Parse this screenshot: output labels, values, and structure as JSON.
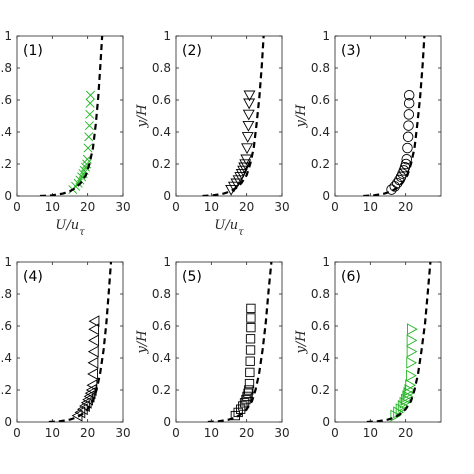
{
  "chart_data": [
    {
      "type": "scatter",
      "panel_label": "(1)",
      "xlabel": "U/u_τ",
      "ylabel": "",
      "xlim": [
        0,
        30
      ],
      "ylim": [
        0,
        1
      ],
      "xticks": [
        "0",
        "10",
        "20",
        "30"
      ],
      "yticks": [
        "0",
        "0.2",
        "0.4",
        "0.6",
        "0.8",
        "1"
      ],
      "marker": "x",
      "marker_color": "#22b422",
      "series": [
        {
          "kind": "markers",
          "x": [
            15.8,
            16.6,
            17.3,
            17.8,
            18.3,
            18.7,
            19.0,
            19.4,
            19.7,
            19.9,
            20.1,
            20.3,
            20.5,
            20.6,
            20.7,
            20.8
          ],
          "y": [
            0.04,
            0.06,
            0.08,
            0.1,
            0.12,
            0.14,
            0.16,
            0.18,
            0.2,
            0.23,
            0.3,
            0.37,
            0.44,
            0.51,
            0.58,
            0.63
          ]
        },
        {
          "kind": "dashed",
          "x": [
            6.5,
            10,
            13,
            15,
            16.5,
            18,
            19.5,
            20.5,
            21.5,
            22.3,
            23.0,
            23.6,
            24.1
          ],
          "y": [
            0.0,
            0.004,
            0.015,
            0.03,
            0.05,
            0.08,
            0.13,
            0.2,
            0.3,
            0.45,
            0.62,
            0.82,
            1.0
          ]
        }
      ]
    },
    {
      "type": "scatter",
      "panel_label": "(2)",
      "xlabel": "U/u_τ",
      "ylabel": "y/H",
      "xlim": [
        0,
        30
      ],
      "ylim": [
        0,
        1
      ],
      "xticks": [
        "0",
        "10",
        "20",
        "30"
      ],
      "yticks": [
        "0",
        "0.2",
        "0.4",
        "0.6",
        "0.8",
        "1"
      ],
      "marker": "triangle-down",
      "marker_color": "#000000",
      "series": [
        {
          "kind": "markers",
          "x": [
            15.6,
            16.4,
            17.1,
            17.7,
            18.2,
            18.6,
            19.0,
            19.3,
            19.6,
            19.9,
            20.1,
            20.3,
            20.5,
            20.6,
            20.7,
            20.8
          ],
          "y": [
            0.04,
            0.06,
            0.08,
            0.1,
            0.12,
            0.14,
            0.16,
            0.18,
            0.2,
            0.23,
            0.3,
            0.37,
            0.44,
            0.51,
            0.58,
            0.63
          ]
        },
        {
          "kind": "dashed",
          "x": [
            7.5,
            10.5,
            13.5,
            15.5,
            17,
            18.5,
            20,
            21,
            22,
            22.8,
            23.6,
            24.3,
            24.8
          ],
          "y": [
            0.0,
            0.004,
            0.015,
            0.03,
            0.05,
            0.08,
            0.13,
            0.2,
            0.3,
            0.45,
            0.62,
            0.82,
            1.0
          ]
        }
      ]
    },
    {
      "type": "scatter",
      "panel_label": "(3)",
      "xlabel": "",
      "ylabel": "y/H",
      "xlim": [
        0,
        30
      ],
      "ylim": [
        0,
        1
      ],
      "xticks": [
        "0",
        "10",
        "20"
      ],
      "yticks": [
        "0",
        "0.2",
        "0.4",
        "0.6",
        "0.8",
        "1"
      ],
      "marker": "circle",
      "marker_color": "#000000",
      "series": [
        {
          "kind": "markers",
          "x": [
            16.0,
            16.9,
            17.6,
            18.2,
            18.7,
            19.1,
            19.5,
            19.8,
            20.1,
            20.3,
            20.5,
            20.7,
            20.8,
            20.9,
            21.0,
            21.0
          ],
          "y": [
            0.04,
            0.06,
            0.08,
            0.1,
            0.12,
            0.14,
            0.16,
            0.18,
            0.2,
            0.23,
            0.3,
            0.37,
            0.44,
            0.51,
            0.58,
            0.63
          ]
        },
        {
          "kind": "dashed",
          "x": [
            8,
            11,
            14,
            16,
            17.5,
            19,
            20.5,
            21.5,
            22.5,
            23.3,
            24.1,
            24.8,
            25.3
          ],
          "y": [
            0.0,
            0.004,
            0.015,
            0.03,
            0.05,
            0.08,
            0.13,
            0.2,
            0.3,
            0.45,
            0.62,
            0.82,
            1.0
          ]
        }
      ]
    },
    {
      "type": "scatter",
      "panel_label": "(4)",
      "xlabel": "",
      "ylabel": "",
      "xlim": [
        0,
        30
      ],
      "ylim": [
        0,
        1
      ],
      "xticks": [
        "0",
        "10",
        "20",
        "30"
      ],
      "yticks": [
        "0",
        "0.2",
        "0.4",
        "0.6",
        "0.8",
        "1"
      ],
      "marker": "triangle-left",
      "marker_color": "#000000",
      "series": [
        {
          "kind": "markers",
          "x": [
            17.2,
            18.0,
            18.7,
            19.3,
            19.8,
            20.2,
            20.6,
            20.9,
            21.2,
            21.4,
            21.6,
            21.7,
            21.8,
            21.9,
            21.9,
            22.0
          ],
          "y": [
            0.04,
            0.06,
            0.08,
            0.1,
            0.12,
            0.14,
            0.16,
            0.18,
            0.2,
            0.23,
            0.3,
            0.37,
            0.44,
            0.51,
            0.58,
            0.63
          ]
        },
        {
          "kind": "dashed",
          "x": [
            9,
            12,
            15,
            17,
            18.5,
            20,
            21.5,
            22.5,
            23.5,
            24.5,
            25.3,
            26.0,
            26.6
          ],
          "y": [
            0.0,
            0.004,
            0.015,
            0.03,
            0.05,
            0.08,
            0.13,
            0.2,
            0.3,
            0.45,
            0.62,
            0.82,
            1.0
          ]
        }
      ]
    },
    {
      "type": "scatter",
      "panel_label": "(5)",
      "xlabel": "",
      "ylabel": "y/H",
      "xlim": [
        0,
        30
      ],
      "ylim": [
        0,
        1
      ],
      "xticks": [
        "0",
        "10",
        "20",
        "30"
      ],
      "yticks": [
        "0",
        "0.2",
        "0.4",
        "0.6",
        "0.8",
        "1"
      ],
      "marker": "square",
      "marker_color": "#000000",
      "series": [
        {
          "kind": "markers",
          "x": [
            16.8,
            17.6,
            18.3,
            18.9,
            19.4,
            19.8,
            20.1,
            20.4,
            20.6,
            20.8,
            20.9,
            21.0,
            21.1,
            21.1,
            21.2,
            21.2,
            21.2
          ],
          "y": [
            0.04,
            0.06,
            0.08,
            0.1,
            0.12,
            0.14,
            0.16,
            0.18,
            0.2,
            0.24,
            0.31,
            0.38,
            0.45,
            0.52,
            0.59,
            0.65,
            0.71
          ]
        },
        {
          "kind": "dashed",
          "x": [
            9,
            12,
            15,
            17,
            18.5,
            20,
            21.5,
            22.5,
            23.5,
            24.5,
            25.4,
            26.2,
            27.0
          ],
          "y": [
            0.0,
            0.004,
            0.015,
            0.03,
            0.05,
            0.08,
            0.13,
            0.2,
            0.3,
            0.45,
            0.62,
            0.82,
            1.0
          ]
        }
      ]
    },
    {
      "type": "scatter",
      "panel_label": "(6)",
      "xlabel": "",
      "ylabel": "y/H",
      "xlim": [
        0,
        30
      ],
      "ylim": [
        0,
        1
      ],
      "xticks": [
        "0",
        "10",
        "20"
      ],
      "yticks": [
        "0",
        "0.2",
        "0.4",
        "0.6",
        "0.8",
        "1"
      ],
      "marker": "triangle-right",
      "marker_color": "#22b422",
      "series": [
        {
          "kind": "markers",
          "x": [
            17.0,
            17.8,
            18.5,
            19.1,
            19.6,
            20.0,
            20.4,
            20.7,
            21.0,
            21.2,
            21.4,
            21.5,
            21.6,
            21.6,
            21.7
          ],
          "y": [
            0.04,
            0.06,
            0.08,
            0.1,
            0.12,
            0.14,
            0.16,
            0.18,
            0.2,
            0.23,
            0.29,
            0.37,
            0.44,
            0.51,
            0.58
          ]
        },
        {
          "kind": "dashed",
          "x": [
            9,
            12,
            15,
            17,
            18.5,
            20,
            21.5,
            22.5,
            23.5,
            24.5,
            25.5,
            26.3,
            27.0
          ],
          "y": [
            0.0,
            0.004,
            0.015,
            0.03,
            0.05,
            0.08,
            0.13,
            0.2,
            0.3,
            0.45,
            0.62,
            0.82,
            1.0
          ]
        }
      ]
    }
  ]
}
